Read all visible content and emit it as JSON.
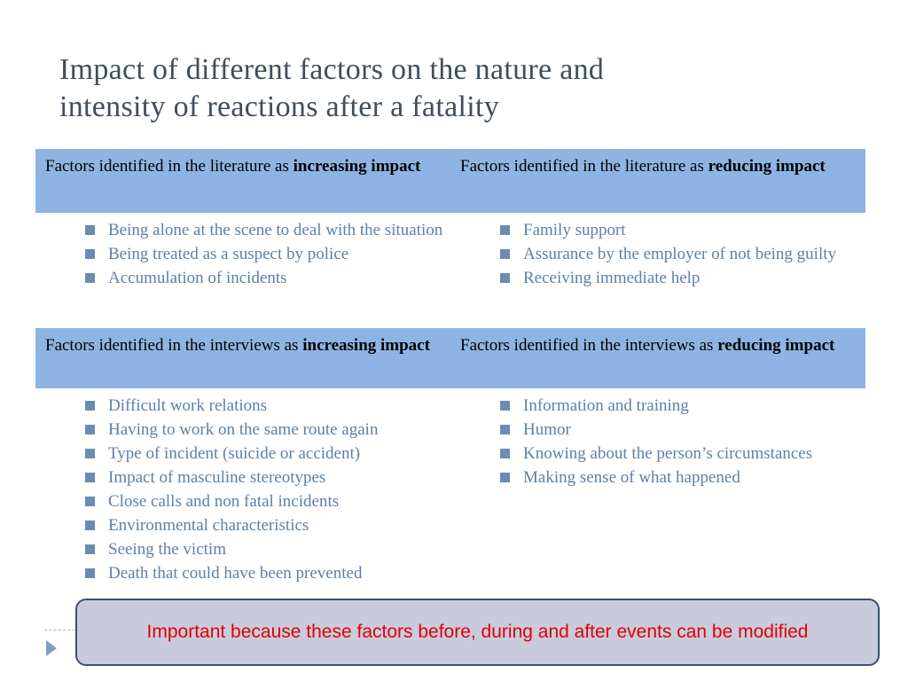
{
  "title": {
    "line1": "Impact of different factors on the nature and",
    "line2": "intensity of reactions after a fatality"
  },
  "table": {
    "section1": {
      "left_header": {
        "prefix": "Factors identified in the literature as ",
        "bold": "increasing impact"
      },
      "right_header": {
        "prefix": "Factors identified in the literature as ",
        "bold": "reducing impact"
      },
      "left_items": [
        "Being alone at the scene to deal with the situation",
        "Being treated as a suspect by police",
        "Accumulation of incidents"
      ],
      "right_items": [
        "Family support",
        "Assurance by the employer of not being guilty",
        "Receiving immediate help"
      ]
    },
    "section2": {
      "left_header": {
        "prefix": "Factors identified in the interviews as ",
        "bold": "increasing impact"
      },
      "right_header": {
        "prefix": "Factors identified in the interviews as ",
        "bold": "reducing impact"
      },
      "left_items": [
        "Difficult work relations",
        "Having to work on the same route again",
        "Type of incident (suicide or accident)",
        "Impact of masculine stereotypes",
        "Close calls and non fatal incidents",
        "Environmental characteristics",
        "Seeing the victim",
        "Death that could have been prevented"
      ],
      "right_items": [
        "Information and training",
        "Humor",
        "Knowing about the person’s circumstances",
        "Making sense of what happened"
      ]
    }
  },
  "note": {
    "text": "Important because these factors before, during and after events can be modified"
  },
  "colors": {
    "header_bg": "#8eb4e3",
    "bullet_text": "#5e7fa6",
    "note_text": "#e00000",
    "note_bg": "#c9cbdc"
  },
  "icons": {
    "bullet": "square-bullet-icon",
    "nav": "play-arrow-icon"
  }
}
